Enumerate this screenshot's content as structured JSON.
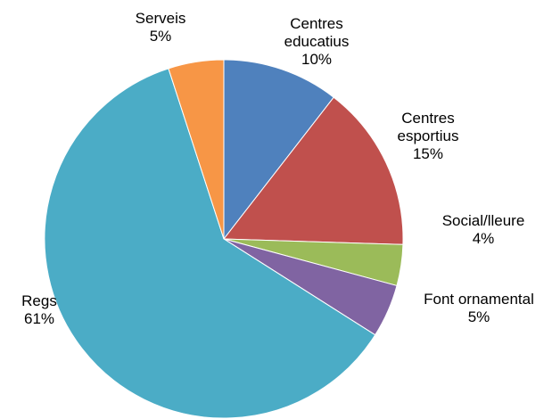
{
  "chart_data": {
    "type": "pie",
    "title": "",
    "start_angle_deg": 0,
    "direction": "clockwise",
    "slices": [
      {
        "label": "Centres educatius",
        "label_lines": [
          "Centres",
          "educatius"
        ],
        "percent_label": "10%",
        "value": 10.5,
        "color": "#4F81BD"
      },
      {
        "label": "Centres esportius",
        "label_lines": [
          "Centres",
          "esportius"
        ],
        "percent_label": "15%",
        "value": 15.0,
        "color": "#C0504D"
      },
      {
        "label": "Social/lleure",
        "label_lines": [
          "Social/lleure"
        ],
        "percent_label": "4%",
        "value": 3.7,
        "color": "#9BBB59"
      },
      {
        "label": "Font ornamental",
        "label_lines": [
          "Font ornamental"
        ],
        "percent_label": "5%",
        "value": 4.8,
        "color": "#8064A2"
      },
      {
        "label": "Regs",
        "label_lines": [
          "Regs"
        ],
        "percent_label": "61%",
        "value": 61.0,
        "color": "#4BACC6"
      },
      {
        "label": "Serveis",
        "label_lines": [
          "Serveis"
        ],
        "percent_label": "5%",
        "value": 5.0,
        "color": "#F79646"
      }
    ],
    "legend": "none"
  }
}
